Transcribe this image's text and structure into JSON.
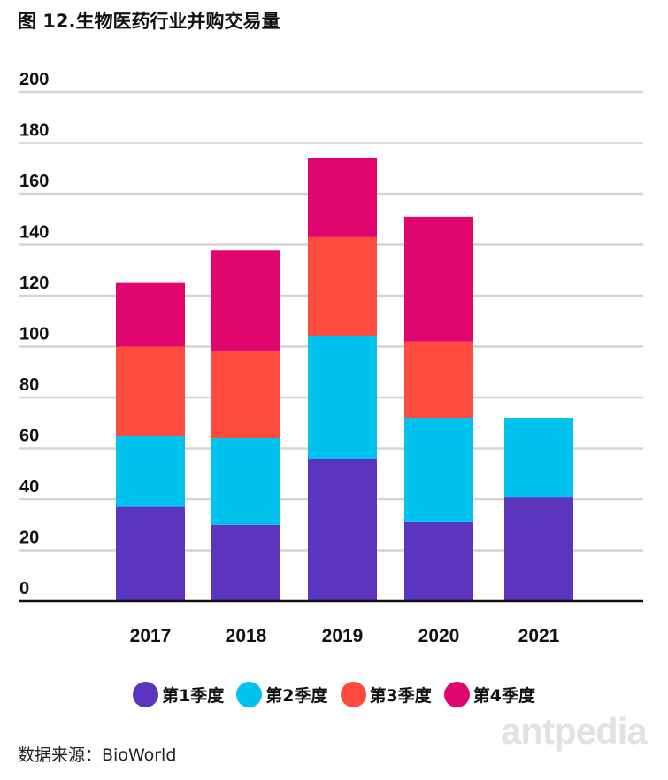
{
  "title": "图 12.生物医药行业并购交易量",
  "source": "数据来源：BioWorld",
  "watermark": "antpedia",
  "chart_data": {
    "type": "bar",
    "stacked": true,
    "title": "图 12.生物医药行业并购交易量",
    "categories": [
      "2017",
      "2018",
      "2019",
      "2020",
      "2021"
    ],
    "series": [
      {
        "name": "第1季度",
        "color": "#5c35be",
        "values": [
          37,
          30,
          56,
          31,
          41
        ]
      },
      {
        "name": "第2季度",
        "color": "#00c2ec",
        "values": [
          28,
          34,
          48,
          41,
          31
        ]
      },
      {
        "name": "第3季度",
        "color": "#ff4b3e",
        "values": [
          35,
          34,
          39,
          30,
          null
        ]
      },
      {
        "name": "第4季度",
        "color": "#e0066e",
        "values": [
          25,
          40,
          31,
          49,
          null
        ]
      }
    ],
    "ylim": [
      0,
      200
    ],
    "yticks": [
      0,
      20,
      40,
      60,
      80,
      100,
      120,
      140,
      160,
      180,
      200
    ],
    "grid": true,
    "legend_position": "bottom"
  }
}
